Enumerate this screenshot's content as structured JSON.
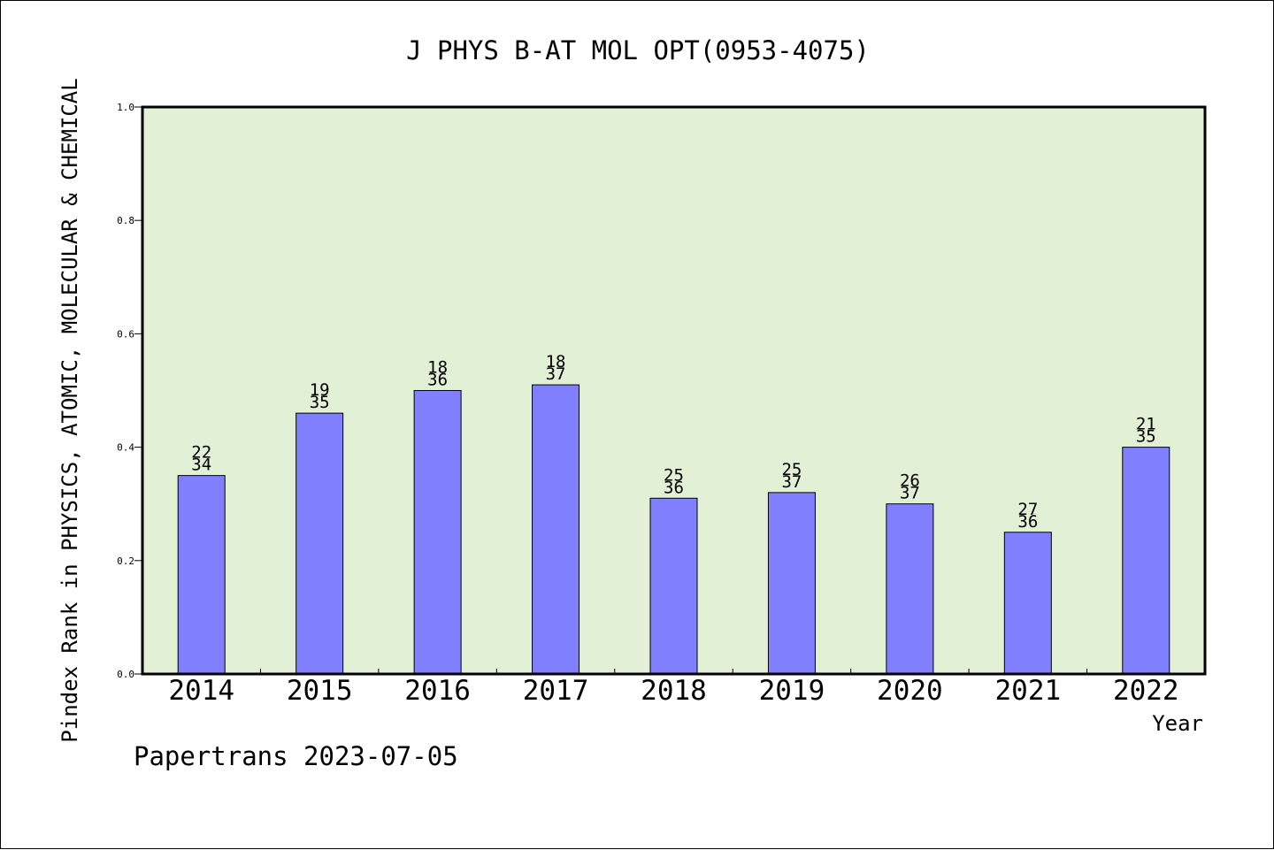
{
  "chart_data": {
    "type": "bar",
    "title": "J PHYS B-AT MOL OPT(0953-4075)",
    "xlabel": "Year",
    "ylabel": "Pindex Rank in PHYSICS, ATOMIC, MOLECULAR & CHEMICAL",
    "footer": "Papertrans 2023-07-05",
    "ylim": [
      0,
      1.0
    ],
    "yticks": [
      "0.0",
      "0.2",
      "0.4",
      "0.6",
      "0.8",
      "1.0"
    ],
    "categories": [
      "2014",
      "2015",
      "2016",
      "2017",
      "2018",
      "2019",
      "2020",
      "2021",
      "2022"
    ],
    "values": [
      0.35,
      0.46,
      0.5,
      0.51,
      0.31,
      0.32,
      0.3,
      0.25,
      0.4
    ],
    "rank_labels": [
      "22",
      "19",
      "18",
      "18",
      "25",
      "25",
      "26",
      "27",
      "21"
    ],
    "total_labels": [
      "34",
      "35",
      "36",
      "37",
      "36",
      "37",
      "37",
      "36",
      "35"
    ],
    "grid": false,
    "colors": {
      "plot_background": "#e2f0d6",
      "bar_fill": "#8080ff",
      "bar_stroke": "#000000"
    }
  }
}
